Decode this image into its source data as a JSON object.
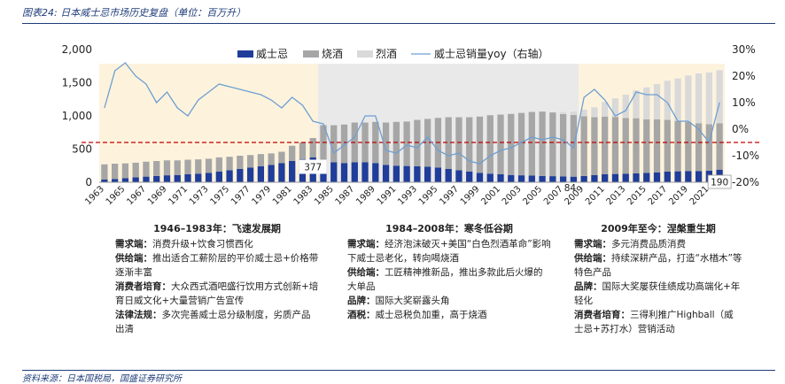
{
  "figure": {
    "title": "图表24: 日本威士忌市场历史复盘（单位：百万升）",
    "source": "资料来源：日本国税局，国盛证券研究所"
  },
  "periods": [
    {
      "title": "1946–1983年：飞速发展期",
      "lines": [
        {
          "label": "需求端：",
          "text": "消费升级+饮食习惯西化"
        },
        {
          "label": "供给端：",
          "text": "推出适合工薪阶层的平价威士忌+价格带逐渐丰富"
        },
        {
          "label": "消费者培育：",
          "text": "大众西式酒吧盛行饮用方式创新+培育日威文化+大量营销广告宣传"
        },
        {
          "label": "法律法规：",
          "text": "多次完善威士忌分级制度，劣质产品出清"
        }
      ]
    },
    {
      "title": "1984–2008年：寒冬低谷期",
      "lines": [
        {
          "label": "需求端：",
          "text": "经济泡沫破灭+美国“白色烈酒革命”影响下威士忌老化，转向喝烧酒"
        },
        {
          "label": "供给端：",
          "text": "工匠精神推新品，推出多款此后火爆的大单品"
        },
        {
          "label": "品牌：",
          "text": "国际大奖崭露头角"
        },
        {
          "label": "酒税：",
          "text": "威士忌税负加重，高于烧酒"
        }
      ]
    },
    {
      "title": "2009年至今：涅槃重生期",
      "lines": [
        {
          "label": "需求端：",
          "text": "多元消费品质消费"
        },
        {
          "label": "供给端：",
          "text": "持续深耕产品，打造“水楢木”等特色产品"
        },
        {
          "label": "品牌：",
          "text": "国际大奖屡获佳绩成功高端化+年轻化"
        },
        {
          "label": "消费者培育：",
          "text": "三得利推广Highball（威士忌+苏打水）营销活动"
        }
      ]
    }
  ],
  "colors": {
    "whisky": "#1f3d99",
    "shochu": "#a6a6a6",
    "spirits": "#d9d9d9",
    "yoy": "#6e9fd1",
    "refline": "#c00000",
    "period1_bg": "#fdf3dd",
    "period2_bg": "#e9e9e9",
    "period3_bg": "#fdf3dd"
  },
  "chart_data": {
    "type": "bar",
    "stacked": true,
    "title": "",
    "xlabel": "",
    "ylabel": "",
    "ylim": [
      0,
      2000
    ],
    "yticks": [
      "2,000",
      "1,500",
      "1,000",
      "500",
      "0"
    ],
    "y2lim": [
      -20,
      30
    ],
    "y2ticks": [
      "30%",
      "20%",
      "10%",
      "0%",
      "-10%",
      "-20%"
    ],
    "legend_position": "top",
    "grid": false,
    "categories": [
      1963,
      1964,
      1965,
      1966,
      1967,
      1968,
      1969,
      1970,
      1971,
      1972,
      1973,
      1974,
      1975,
      1976,
      1977,
      1978,
      1979,
      1980,
      1981,
      1982,
      1983,
      1984,
      1985,
      1986,
      1987,
      1988,
      1989,
      1990,
      1991,
      1992,
      1993,
      1994,
      1995,
      1996,
      1997,
      1998,
      1999,
      2000,
      2001,
      2002,
      2003,
      2004,
      2005,
      2006,
      2007,
      2008,
      2009,
      2010,
      2011,
      2012,
      2013,
      2014,
      2015,
      2016,
      2017,
      2018,
      2019,
      2020,
      2021,
      2022
    ],
    "xtick_labels": [
      "1963",
      "1965",
      "1967",
      "1969",
      "1971",
      "1973",
      "1975",
      "1977",
      "1979",
      "1981",
      "1983",
      "1985",
      "1987",
      "1989",
      "1991",
      "1993",
      "1995",
      "1997",
      "1999",
      "2001",
      "2003",
      "2005",
      "2007",
      "2009",
      "2011",
      "2013",
      "2015",
      "2017",
      "2019",
      "2021"
    ],
    "series": [
      {
        "name": "威士忌",
        "axis": "left",
        "values": [
          40,
          50,
          60,
          75,
          85,
          95,
          105,
          110,
          120,
          130,
          140,
          160,
          180,
          200,
          220,
          240,
          260,
          290,
          320,
          350,
          377,
          340,
          300,
          290,
          300,
          300,
          290,
          260,
          250,
          245,
          240,
          235,
          220,
          200,
          180,
          160,
          140,
          130,
          120,
          110,
          105,
          100,
          95,
          92,
          88,
          84,
          95,
          110,
          120,
          125,
          130,
          135,
          140,
          150,
          160,
          165,
          170,
          170,
          175,
          190
        ]
      },
      {
        "name": "烧酒",
        "axis": "left",
        "values": [
          230,
          230,
          225,
          220,
          225,
          225,
          225,
          220,
          220,
          215,
          215,
          215,
          205,
          200,
          190,
          185,
          175,
          170,
          230,
          250,
          290,
          520,
          560,
          580,
          600,
          600,
          620,
          640,
          660,
          670,
          700,
          720,
          750,
          780,
          800,
          820,
          850,
          880,
          900,
          920,
          940,
          960,
          970,
          960,
          940,
          930,
          900,
          870,
          870,
          860,
          840,
          830,
          810,
          800,
          780,
          760,
          740,
          720,
          700,
          700
        ]
      },
      {
        "name": "烈酒",
        "axis": "left",
        "values": [
          0,
          0,
          0,
          0,
          0,
          0,
          0,
          0,
          0,
          0,
          0,
          0,
          0,
          0,
          0,
          0,
          0,
          0,
          0,
          0,
          0,
          0,
          0,
          0,
          0,
          0,
          0,
          0,
          0,
          0,
          0,
          0,
          0,
          0,
          0,
          0,
          0,
          0,
          0,
          0,
          0,
          0,
          0,
          0,
          30,
          50,
          100,
          150,
          220,
          280,
          350,
          420,
          480,
          530,
          590,
          640,
          700,
          750,
          780,
          800
        ]
      },
      {
        "name": "威士忌销量yoy（右轴）",
        "axis": "right",
        "values": [
          8,
          22,
          25,
          20,
          17,
          10,
          14,
          8,
          5,
          11,
          14,
          17,
          16,
          15,
          14,
          13,
          11,
          8,
          12,
          9,
          3,
          2,
          -9,
          -6,
          -3,
          5,
          5,
          -8,
          -9,
          -6,
          -7,
          -3,
          -8,
          -10,
          -9,
          -12,
          -13,
          -10,
          -8,
          -7,
          -5,
          -3,
          -4,
          -3,
          -4,
          -7,
          12,
          15,
          11,
          5,
          7,
          14,
          13,
          13,
          10,
          3,
          3,
          0,
          -5,
          10
        ]
      }
    ],
    "data_labels": [
      {
        "category": 1983,
        "text": "377"
      },
      {
        "category": 2008,
        "text": "84"
      },
      {
        "category": 2022,
        "text": "190"
      }
    ],
    "reference_line": {
      "axis": "right",
      "value": -5,
      "style": "dashed"
    },
    "period_bands": [
      [
        1963,
        1983
      ],
      [
        1984,
        2008
      ],
      [
        2009,
        2022
      ]
    ]
  }
}
